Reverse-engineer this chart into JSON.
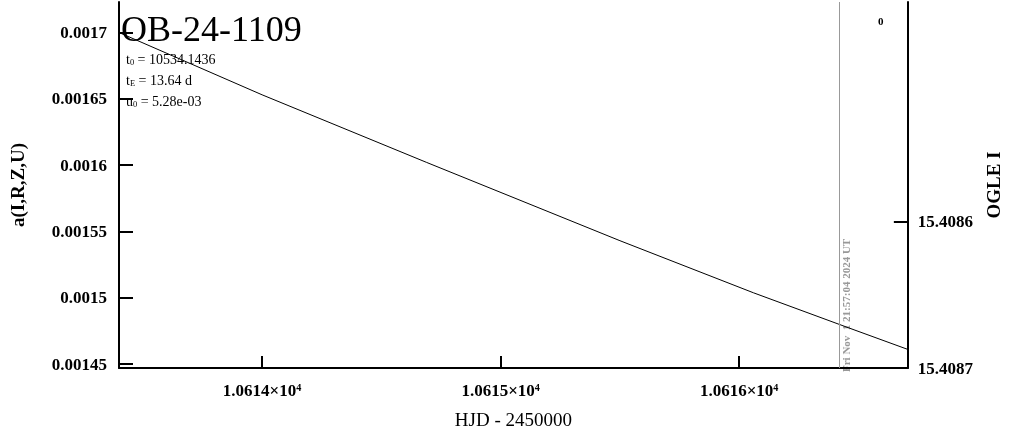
{
  "chart_data": {
    "type": "line",
    "title": "OB-24-1109",
    "xlabel": "HJD - 2450000",
    "ylabel": "a(I,R,Z,U)",
    "y2label": "OGLE I",
    "x": [
      10613.4,
      10614.0,
      10614.69,
      10615.5,
      10616.06,
      10616.46,
      10616.707
    ],
    "series": [
      {
        "color": "#000000",
        "values": [
          0.0017,
          0.001653,
          0.001602,
          0.001543,
          0.0015037,
          0.0014772,
          0.001461
        ]
      }
    ],
    "xlim": [
      10613.4,
      10616.707
    ],
    "xticks": [
      {
        "value": 10614,
        "label": "1.0614×10$^{4}$"
      },
      {
        "value": 10615,
        "label": "1.0615×10$^{4}$"
      },
      {
        "value": 10616,
        "label": "1.0616×10$^{4}$"
      }
    ],
    "ylim": [
      0.001447,
      0.001723
    ],
    "yticks": [
      0.00145,
      0.0015,
      0.00155,
      0.0016,
      0.00165,
      0.0017
    ],
    "y2lim": [
      15.4087,
      15.40845
    ],
    "y2ticks": [
      15.4086,
      15.4087
    ],
    "ref_lines": [
      {
        "axis": "x",
        "value": 10616.415,
        "color": "#999999"
      }
    ],
    "annotations": [
      "t$_{0}$ = 10534.1436",
      "t$_{E}$ = 13.64 d",
      "u$_{0}$ = 5.28e-03",
      "0",
      "Fri Nov  1 21:57:04 2024 UT"
    ],
    "grid": false,
    "marker": "none",
    "line_style": "solid"
  }
}
